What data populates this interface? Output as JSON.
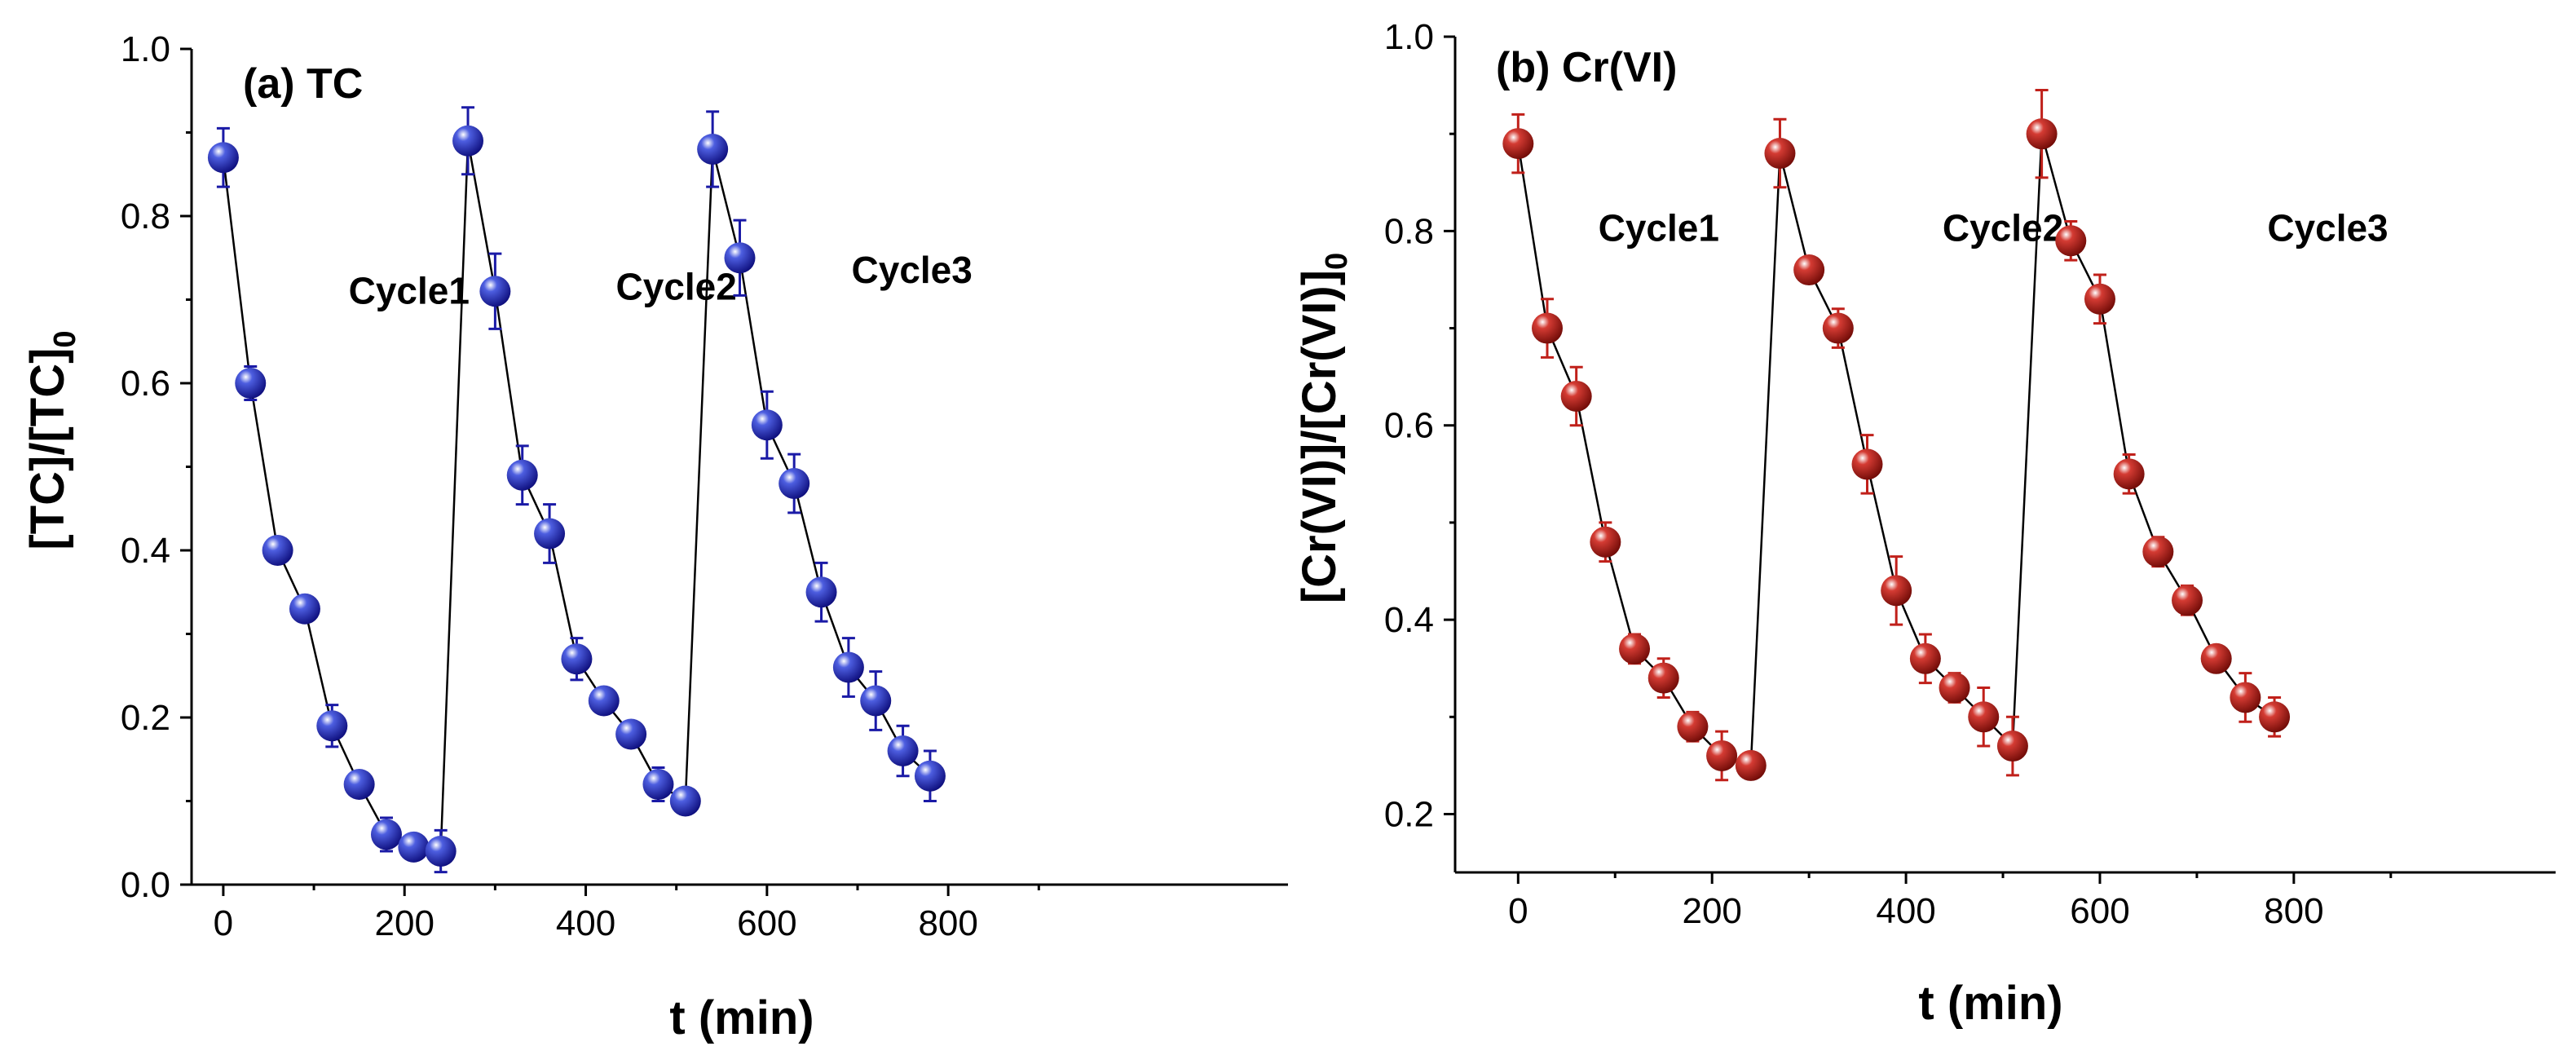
{
  "chart_data": [
    {
      "type": "scatter",
      "panel_title": "(a) TC",
      "xlabel": "t (min)",
      "ylabel": "[TC]/[TC]",
      "ylabel_sub": "0",
      "xlim": [
        -35,
        1175
      ],
      "ylim": [
        0,
        1.0
      ],
      "xticks": [
        0,
        200,
        400,
        600,
        800
      ],
      "yticks": [
        0.0,
        0.2,
        0.4,
        0.6,
        0.8,
        1.0
      ],
      "xtick_labels": [
        "0",
        "200",
        "400",
        "600",
        "800"
      ],
      "ytick_labels": [
        "0.0",
        "0.2",
        "0.4",
        "0.6",
        "0.8",
        "1.0"
      ],
      "marker_color": "#1a1aa6",
      "errorbar_color": "#1a1aa6",
      "line_color": "#000000",
      "annotations": [
        {
          "text": "Cycle1",
          "x": 205,
          "y": 0.695
        },
        {
          "text": "Cycle2",
          "x": 500,
          "y": 0.7
        },
        {
          "text": "Cycle3",
          "x": 760,
          "y": 0.72
        }
      ],
      "series": [
        {
          "name": "TC",
          "x": [
            0,
            30,
            60,
            90,
            120,
            150,
            180,
            210,
            240,
            270,
            300,
            330,
            360,
            390,
            420,
            450,
            480,
            510,
            540,
            570,
            600,
            630,
            660,
            690,
            720,
            750,
            780
          ],
          "y": [
            0.87,
            0.6,
            0.4,
            0.33,
            0.19,
            0.12,
            0.06,
            0.045,
            0.04,
            0.89,
            0.71,
            0.49,
            0.42,
            0.27,
            0.22,
            0.18,
            0.12,
            0.1,
            0.88,
            0.75,
            0.55,
            0.48,
            0.35,
            0.26,
            0.22,
            0.16,
            0.13
          ],
          "err": [
            0.035,
            0.02,
            0.01,
            0.01,
            0.025,
            0.01,
            0.02,
            0.01,
            0.025,
            0.04,
            0.045,
            0.035,
            0.035,
            0.025,
            0.01,
            0.01,
            0.02,
            0.01,
            0.045,
            0.045,
            0.04,
            0.035,
            0.035,
            0.035,
            0.035,
            0.03,
            0.03
          ]
        }
      ]
    },
    {
      "type": "scatter",
      "panel_title": "(b) Cr(VI)",
      "xlabel": "t (min)",
      "ylabel": "[Cr(VI)]/[Cr(VI)]",
      "ylabel_sub": "0",
      "xlim": [
        -65,
        1070
      ],
      "ylim": [
        0.14,
        1.0
      ],
      "xticks": [
        0,
        200,
        400,
        600,
        800
      ],
      "yticks": [
        0.2,
        0.4,
        0.6,
        0.8,
        1.0
      ],
      "xtick_labels": [
        "0",
        "200",
        "400",
        "600",
        "800"
      ],
      "ytick_labels": [
        "0.2",
        "0.4",
        "0.6",
        "0.8",
        "1.0"
      ],
      "marker_color": "#a8120c",
      "errorbar_color": "#c0201a",
      "line_color": "#000000",
      "annotations": [
        {
          "text": "Cycle1",
          "x": 145,
          "y": 0.79
        },
        {
          "text": "Cycle2",
          "x": 500,
          "y": 0.79
        },
        {
          "text": "Cycle3",
          "x": 835,
          "y": 0.79
        }
      ],
      "series": [
        {
          "name": "Cr(VI)",
          "x": [
            0,
            30,
            60,
            90,
            120,
            150,
            180,
            210,
            240,
            270,
            300,
            330,
            360,
            390,
            420,
            450,
            480,
            510,
            540,
            570,
            600,
            630,
            660,
            690,
            720,
            750,
            780
          ],
          "y": [
            0.89,
            0.7,
            0.63,
            0.48,
            0.37,
            0.34,
            0.29,
            0.26,
            0.25,
            0.88,
            0.76,
            0.7,
            0.56,
            0.43,
            0.36,
            0.33,
            0.3,
            0.27,
            0.9,
            0.79,
            0.73,
            0.55,
            0.47,
            0.42,
            0.36,
            0.32,
            0.3
          ],
          "err": [
            0.03,
            0.03,
            0.03,
            0.02,
            0.015,
            0.02,
            0.015,
            0.025,
            0.01,
            0.035,
            0.01,
            0.02,
            0.03,
            0.035,
            0.025,
            0.015,
            0.03,
            0.03,
            0.045,
            0.02,
            0.025,
            0.02,
            0.015,
            0.015,
            0.01,
            0.025,
            0.02
          ]
        }
      ]
    }
  ]
}
